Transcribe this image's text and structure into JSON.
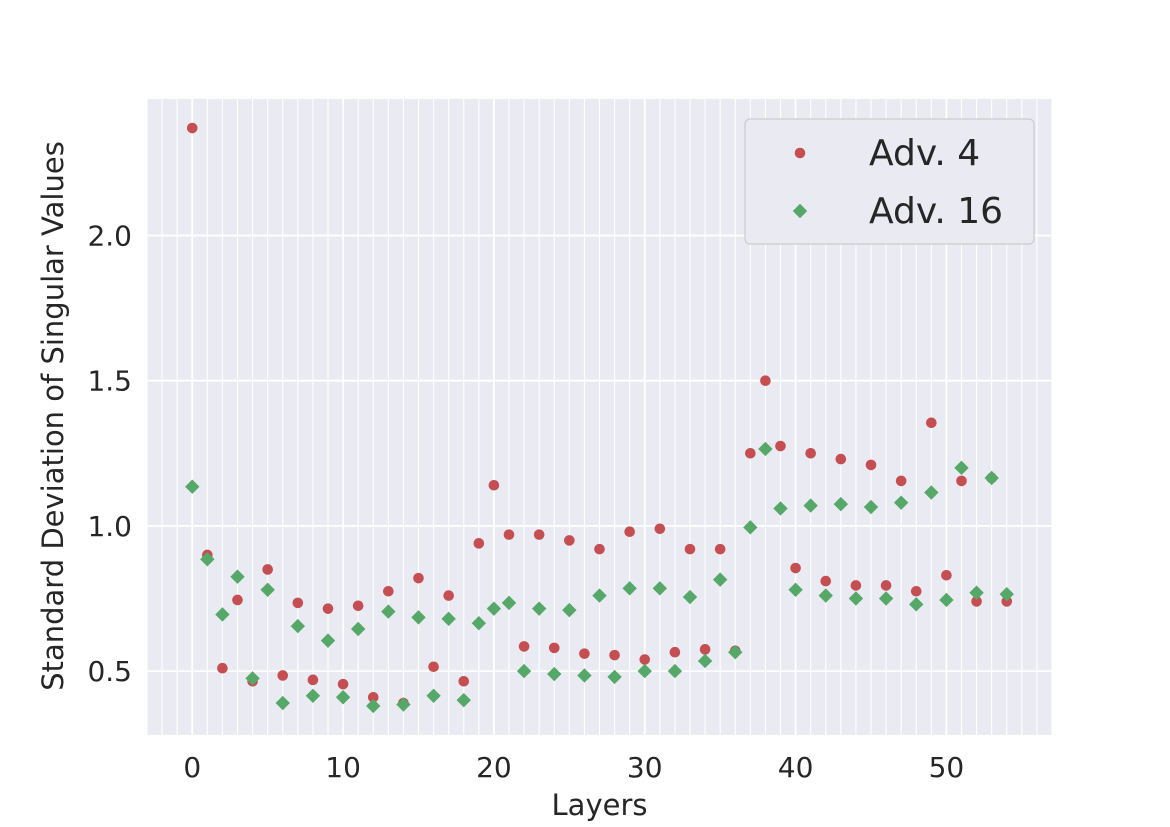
{
  "chart_data": {
    "type": "scatter",
    "xlabel": "Layers",
    "ylabel": "Standard Deviation of Singular Values",
    "xlim": [
      -3,
      57
    ],
    "ylim": [
      0.28,
      2.47
    ],
    "xticks": [
      0,
      10,
      20,
      30,
      40,
      50
    ],
    "xtick_labels": [
      "0",
      "10",
      "20",
      "30",
      "40",
      "50"
    ],
    "yticks": [
      0.5,
      1.0,
      1.5,
      2.0
    ],
    "ytick_labels": [
      "0.5",
      "1.0",
      "1.5",
      "2.0"
    ],
    "grid": true,
    "legend_position": "top-right",
    "series": [
      {
        "name": "Adv. 4",
        "marker": "circle",
        "color": "#c44e52",
        "x": [
          0,
          1,
          2,
          3,
          4,
          5,
          6,
          7,
          8,
          9,
          10,
          11,
          12,
          13,
          14,
          15,
          16,
          17,
          18,
          19,
          20,
          21,
          22,
          23,
          24,
          25,
          26,
          27,
          28,
          29,
          30,
          31,
          32,
          33,
          34,
          35,
          36,
          37,
          38,
          39,
          40,
          41,
          42,
          43,
          44,
          45,
          46,
          47,
          48,
          49,
          50,
          51,
          52,
          53,
          54
        ],
        "y": [
          2.37,
          0.9,
          0.51,
          0.745,
          0.465,
          0.85,
          0.485,
          0.735,
          0.47,
          0.715,
          0.455,
          0.725,
          0.41,
          0.775,
          0.39,
          0.82,
          0.515,
          0.76,
          0.465,
          0.94,
          1.14,
          0.97,
          0.585,
          0.97,
          0.58,
          0.95,
          0.56,
          0.92,
          0.555,
          0.98,
          0.54,
          0.99,
          0.565,
          0.92,
          0.575,
          0.92,
          0.57,
          1.25,
          1.5,
          1.275,
          0.855,
          1.25,
          0.81,
          1.23,
          0.795,
          1.21,
          0.795,
          1.155,
          0.775,
          1.355,
          0.83,
          1.155,
          0.74,
          1.165,
          0.74
        ]
      },
      {
        "name": "Adv. 16",
        "marker": "diamond",
        "color": "#55a868",
        "x": [
          0,
          1,
          3,
          4,
          5,
          6,
          7,
          8,
          9,
          10,
          11,
          12,
          13,
          14,
          15,
          16,
          17,
          18,
          19,
          20,
          21,
          22,
          23,
          24,
          25,
          26,
          27,
          28,
          29,
          30,
          31,
          32,
          33,
          34,
          35,
          36,
          37,
          38,
          39,
          40,
          41,
          42,
          43,
          44,
          45,
          46,
          47,
          48,
          49,
          50,
          51,
          52,
          53,
          54
        ],
        "y": [
          1.135,
          0.885,
          0.825,
          0.475,
          0.78,
          0.39,
          0.655,
          0.415,
          0.605,
          0.41,
          0.645,
          0.38,
          0.705,
          0.385,
          0.685,
          0.415,
          0.68,
          0.4,
          0.665,
          0.715,
          0.735,
          0.5,
          0.715,
          0.49,
          0.71,
          0.485,
          0.76,
          0.48,
          0.785,
          0.5,
          0.785,
          0.5,
          0.755,
          0.535,
          0.815,
          0.565,
          0.995,
          1.265,
          1.06,
          0.78,
          1.07,
          0.76,
          1.075,
          0.75,
          1.065,
          0.75,
          1.08,
          0.73,
          1.115,
          0.745,
          1.2,
          0.77,
          1.165,
          0.765
        ]
      }
    ],
    "extra_points": [
      {
        "series": "Adv. 16",
        "x": 2,
        "y": 0.695
      }
    ]
  }
}
